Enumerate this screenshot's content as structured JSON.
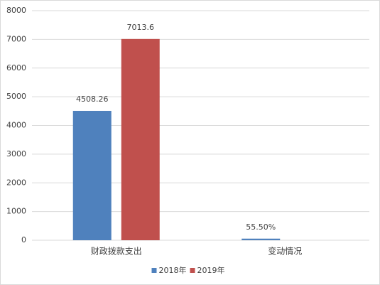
{
  "chart_data": {
    "type": "bar",
    "categories": [
      "财政拨款支出",
      "变动情况"
    ],
    "series": [
      {
        "name": "2018年",
        "color": "#4f81bd",
        "values": [
          4508.26,
          55.5
        ],
        "value_labels": [
          "4508.26",
          "55.50%"
        ]
      },
      {
        "name": "2019年",
        "color": "#c0504d",
        "values": [
          7013.6,
          null
        ]
      }
    ],
    "ylim": [
      0,
      8000
    ],
    "yticks": [
      0,
      1000,
      2000,
      3000,
      4000,
      5000,
      6000,
      7000,
      8000
    ],
    "grid": true,
    "legend": "bottom"
  }
}
